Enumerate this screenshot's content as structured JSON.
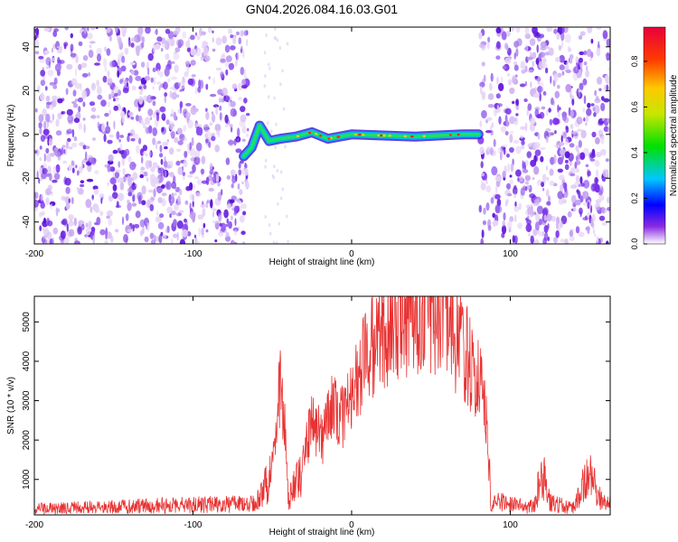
{
  "title": "GN04.2026.084.16.03.G01",
  "chart_data": [
    {
      "type": "heatmap",
      "xlabel": "Height of straight line (km)",
      "ylabel": "Frequency (Hz)",
      "xlim": [
        -200,
        163
      ],
      "ylim": [
        -50,
        49
      ],
      "xticks": [
        "-200",
        "-100",
        "0",
        "100"
      ],
      "yticks": [
        "-40",
        "-20",
        "0",
        "20",
        "40"
      ],
      "grid": false,
      "colorbar": {
        "label": "Normalized spectral amplitude",
        "range": [
          0,
          0.95
        ],
        "ticks": [
          "0.0",
          "0.2",
          "0.4",
          "0.6",
          "0.8"
        ]
      },
      "signal_track": [
        {
          "x": -68,
          "y": -10
        },
        {
          "x": -63,
          "y": -6
        },
        {
          "x": -58,
          "y": 4
        },
        {
          "x": -52,
          "y": -3
        },
        {
          "x": -45,
          "y": -2
        },
        {
          "x": -35,
          "y": -1
        },
        {
          "x": -25,
          "y": 1
        },
        {
          "x": -15,
          "y": -2
        },
        {
          "x": 0,
          "y": 0
        },
        {
          "x": 40,
          "y": -1
        },
        {
          "x": 70,
          "y": 0
        },
        {
          "x": 80,
          "y": 0
        }
      ],
      "noise_x_ranges": [
        [
          -200,
          -65
        ],
        [
          81,
          163
        ]
      ]
    },
    {
      "type": "line",
      "xlabel": "Height of straight line (km)",
      "ylabel": "SNR (10 * v/v)",
      "xlim": [
        -200,
        163
      ],
      "ylim": [
        100,
        5650
      ],
      "xticks": [
        "-200",
        "-100",
        "0",
        "100"
      ],
      "yticks": [
        "1000",
        "2000",
        "3000",
        "4000",
        "5000"
      ],
      "grid": false,
      "series": [
        {
          "color": "#e83232",
          "x": [
            -200,
            -60,
            -52,
            -48,
            -45,
            -42,
            -40,
            -32,
            -25,
            -18,
            -12,
            -5,
            0,
            5,
            12,
            20,
            30,
            40,
            50,
            58,
            65,
            70,
            75,
            80,
            85,
            88,
            92,
            100,
            115,
            120,
            125,
            140,
            150,
            155,
            160,
            163
          ],
          "y": [
            250,
            400,
            1000,
            2000,
            3400,
            2200,
            500,
            1200,
            2500,
            2000,
            2900,
            2600,
            3000,
            3800,
            4300,
            4800,
            5200,
            5350,
            5400,
            5200,
            4700,
            4400,
            3900,
            3600,
            2500,
            300,
            450,
            350,
            300,
            1300,
            400,
            280,
            1200,
            600,
            400,
            500
          ]
        }
      ]
    }
  ]
}
